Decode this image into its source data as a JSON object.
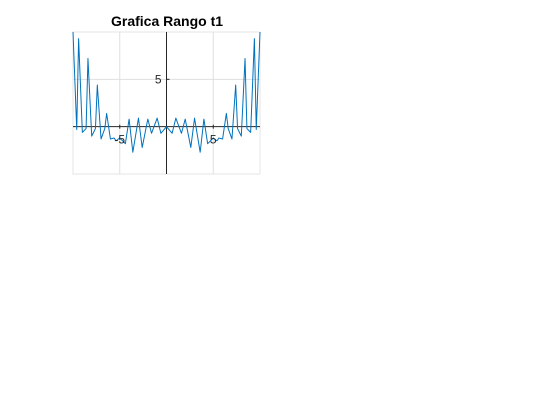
{
  "chart_data": {
    "type": "line",
    "title": "Grafica Rango t1",
    "xlabel": "",
    "ylabel": "",
    "xlim": [
      -10,
      10
    ],
    "ylim": [
      -5,
      10
    ],
    "xticks": [
      -5,
      5
    ],
    "yticks": [
      5
    ],
    "xtick_labels": [
      "-5",
      "5"
    ],
    "ytick_labels": [
      "5"
    ],
    "grid": true,
    "axis_location": "origin",
    "series": [
      {
        "color": "#0072BD",
        "x": [
          -10,
          -9.6,
          -9.4,
          -9.0,
          -8.6,
          -8.4,
          -8.0,
          -7.6,
          -7.4,
          -7.0,
          -6.6,
          -6.4,
          -6.0,
          -5.6,
          -5.4,
          -5.0,
          -4.4,
          -4.0,
          -3.6,
          -3.0,
          -2.6,
          -2.0,
          -1.6,
          -1.0,
          -0.6,
          0.0,
          0.6,
          1.0,
          1.6,
          2.0,
          2.6,
          3.0,
          3.6,
          4.0,
          4.4,
          5.0,
          5.4,
          5.6,
          6.0,
          6.4,
          6.6,
          7.0,
          7.4,
          7.6,
          8.0,
          8.4,
          8.6,
          9.0,
          9.4,
          9.6,
          10
        ],
        "y": [
          10,
          -0.3,
          9.3,
          -0.6,
          -0.2,
          7.2,
          -1.0,
          -0.2,
          4.4,
          -1.3,
          -0.2,
          1.4,
          -1.3,
          -1.2,
          -1.5,
          -1.2,
          -1.8,
          0.8,
          -2.7,
          0.9,
          -2.2,
          0.8,
          -0.7,
          0.9,
          -0.7,
          0,
          -0.7,
          0.9,
          -0.7,
          0.8,
          -2.2,
          0.9,
          -2.7,
          0.8,
          -1.8,
          -1.2,
          -1.5,
          -1.2,
          -1.3,
          1.4,
          -0.2,
          -1.3,
          4.4,
          -0.2,
          -1.0,
          7.2,
          -0.2,
          -0.6,
          9.3,
          -0.3,
          10
        ]
      }
    ]
  }
}
